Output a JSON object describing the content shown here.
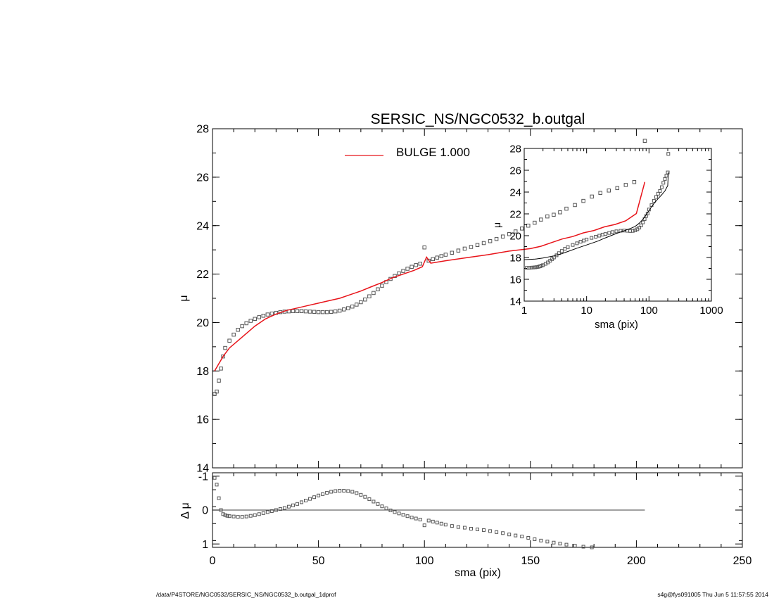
{
  "footer": {
    "left": "/data/P4STORE/NGC0532/SERSIC_NS/NGC0532_b.outgal_1dprof",
    "right": "s4g@fys091005  Thu Jun  5 11:57:55 2014"
  },
  "colors": {
    "model": "#e8141a",
    "data": "#555555",
    "axis": "#000000"
  },
  "chart_data": [
    {
      "type": "scatter",
      "panel": "main",
      "title": "SERSIC_NS/NGC0532_b.outgal",
      "xlabel": "",
      "ylabel": "μ",
      "xlim": [
        0,
        250
      ],
      "ylim": [
        28,
        14
      ],
      "y_inverted": true,
      "xticks": [
        0,
        50,
        100,
        150,
        200,
        250
      ],
      "yticks": [
        14,
        16,
        18,
        20,
        22,
        24,
        26,
        28
      ],
      "legend": {
        "label": "BULGE  1.000",
        "placement": "top-center"
      },
      "series": [
        {
          "name": "",
          "style": "squares",
          "x": [
            1,
            2,
            3,
            4,
            5,
            6,
            8,
            10,
            12,
            14,
            16,
            18,
            20,
            22,
            24,
            26,
            28,
            30,
            32,
            34,
            36,
            38,
            40,
            42,
            44,
            46,
            48,
            50,
            52,
            54,
            56,
            58,
            60,
            62,
            64,
            66,
            68,
            70,
            72,
            74,
            76,
            78,
            80,
            82,
            84,
            86,
            88,
            90,
            92,
            94,
            96,
            98,
            100,
            102,
            104,
            106,
            108,
            110,
            113,
            116,
            119,
            122,
            125,
            128,
            131,
            134,
            137,
            140,
            143,
            146,
            149,
            152,
            155,
            158,
            161,
            164,
            167,
            171,
            175,
            179,
            183,
            187,
            191,
            195,
            199,
            204
          ],
          "y": [
            17.05,
            17.15,
            17.6,
            18.1,
            18.6,
            18.95,
            19.25,
            19.5,
            19.7,
            19.85,
            19.97,
            20.07,
            20.15,
            20.22,
            20.28,
            20.33,
            20.37,
            20.4,
            20.43,
            20.45,
            20.46,
            20.47,
            20.47,
            20.47,
            20.46,
            20.45,
            20.44,
            20.43,
            20.43,
            20.43,
            20.44,
            20.46,
            20.49,
            20.54,
            20.59,
            20.66,
            20.74,
            20.84,
            20.95,
            21.08,
            21.22,
            21.37,
            21.52,
            21.67,
            21.8,
            21.92,
            22.03,
            22.13,
            22.22,
            22.3,
            22.37,
            22.43,
            23.1,
            22.55,
            22.62,
            22.68,
            22.74,
            22.8,
            22.88,
            22.97,
            23.05,
            23.12,
            23.2,
            23.28,
            23.36,
            23.45,
            23.55,
            23.65,
            23.76,
            23.88,
            24.0,
            24.12,
            24.25,
            24.38,
            24.45,
            24.55,
            24.7,
            24.85,
            25.02,
            25.2,
            25.35,
            25.45,
            25.55,
            25.68,
            25.8,
            27.5
          ]
        },
        {
          "name": "BULGE  1.000",
          "style": "line",
          "x": [
            1,
            3,
            5,
            8,
            12,
            16,
            20,
            25,
            30,
            35,
            40,
            45,
            50,
            55,
            60,
            65,
            70,
            75,
            80,
            85,
            90,
            95,
            99,
            101,
            103,
            110,
            120,
            130,
            140,
            150,
            155,
            160,
            165,
            170,
            175,
            180,
            185,
            190,
            195,
            200,
            204
          ],
          "y": [
            18.0,
            18.3,
            18.6,
            18.95,
            19.25,
            19.55,
            19.85,
            20.15,
            20.35,
            20.5,
            20.6,
            20.7,
            20.8,
            20.9,
            21.0,
            21.15,
            21.3,
            21.48,
            21.65,
            21.85,
            22.0,
            22.15,
            22.3,
            22.7,
            22.45,
            22.55,
            22.68,
            22.8,
            22.95,
            23.05,
            23.15,
            23.3,
            23.45,
            23.55,
            23.7,
            23.8,
            23.95,
            24.05,
            24.2,
            24.5,
            25.8
          ]
        }
      ]
    },
    {
      "type": "scatter",
      "panel": "residual",
      "xlabel": "sma (pix)",
      "ylabel": "Δ μ",
      "xlim": [
        0,
        250
      ],
      "ylim": [
        -1.1,
        1.1
      ],
      "xticks": [
        0,
        50,
        100,
        150,
        200,
        250
      ],
      "yticks": [
        -1,
        0,
        1
      ],
      "zero_line": {
        "x_end": 204
      },
      "series": [
        {
          "name": "",
          "style": "squares",
          "x": [
            1,
            2,
            3,
            4,
            5,
            6,
            7,
            8,
            10,
            12,
            14,
            16,
            18,
            20,
            22,
            24,
            26,
            28,
            30,
            32,
            34,
            36,
            38,
            40,
            42,
            44,
            46,
            48,
            50,
            52,
            54,
            56,
            58,
            60,
            62,
            64,
            66,
            68,
            70,
            72,
            74,
            76,
            78,
            80,
            82,
            84,
            86,
            88,
            90,
            92,
            94,
            96,
            98,
            100,
            102,
            104,
            106,
            108,
            110,
            113,
            116,
            119,
            122,
            125,
            128,
            131,
            134,
            137,
            140,
            143,
            146,
            149,
            152,
            155,
            158,
            161,
            164,
            167,
            171,
            175,
            179
          ],
          "y": [
            -0.95,
            -0.75,
            -0.35,
            0.0,
            0.12,
            0.15,
            0.17,
            0.18,
            0.19,
            0.2,
            0.2,
            0.19,
            0.17,
            0.15,
            0.12,
            0.09,
            0.06,
            0.03,
            0.0,
            -0.03,
            -0.06,
            -0.1,
            -0.14,
            -0.18,
            -0.23,
            -0.28,
            -0.33,
            -0.38,
            -0.43,
            -0.47,
            -0.51,
            -0.54,
            -0.56,
            -0.57,
            -0.57,
            -0.56,
            -0.54,
            -0.5,
            -0.45,
            -0.39,
            -0.32,
            -0.25,
            -0.18,
            -0.11,
            -0.05,
            0.01,
            0.06,
            0.1,
            0.14,
            0.18,
            0.22,
            0.25,
            0.28,
            0.45,
            0.31,
            0.34,
            0.37,
            0.4,
            0.43,
            0.47,
            0.5,
            0.52,
            0.55,
            0.57,
            0.59,
            0.62,
            0.65,
            0.68,
            0.72,
            0.75,
            0.78,
            0.82,
            0.86,
            0.9,
            0.93,
            0.96,
            0.99,
            1.02,
            1.05,
            1.08,
            1.1
          ]
        }
      ]
    },
    {
      "type": "scatter",
      "panel": "inset",
      "xlabel": "sma (pix)",
      "ylabel": "μ",
      "xscale": "log",
      "xlim": [
        1,
        1000
      ],
      "ylim": [
        28,
        14
      ],
      "y_inverted": true,
      "xticks": [
        1,
        10,
        100,
        1000
      ],
      "xtick_labels": [
        "1",
        "10",
        "100",
        "1000"
      ],
      "yticks": [
        14,
        16,
        18,
        20,
        22,
        24,
        26,
        28
      ],
      "series": [
        {
          "name": "",
          "style": "squares",
          "x": [
            1.1,
            1.2,
            1.3,
            1.4,
            1.5,
            1.6,
            1.7,
            1.8,
            1.9,
            2.0,
            2.2,
            2.4,
            2.6,
            2.8,
            3.0,
            3.3,
            3.6,
            4.0,
            4.5,
            5,
            6,
            7,
            8,
            9,
            10,
            12,
            14,
            16,
            18,
            20,
            23,
            26,
            30,
            35,
            40,
            45,
            50,
            55,
            60,
            65,
            70,
            75,
            80,
            85,
            90,
            95,
            100,
            110,
            120,
            130,
            140,
            150,
            160,
            170,
            180,
            190,
            200,
            204
          ],
          "y": [
            17.05,
            17.05,
            17.07,
            17.08,
            17.1,
            17.12,
            17.15,
            17.2,
            17.25,
            17.3,
            17.42,
            17.55,
            17.7,
            17.85,
            18.0,
            18.2,
            18.4,
            18.6,
            18.8,
            18.95,
            19.15,
            19.3,
            19.45,
            19.55,
            19.65,
            19.8,
            19.9,
            20.0,
            20.1,
            20.15,
            20.25,
            20.33,
            20.4,
            20.45,
            20.47,
            20.45,
            20.43,
            20.44,
            20.49,
            20.59,
            20.74,
            20.95,
            21.22,
            21.52,
            21.8,
            22.03,
            22.4,
            22.8,
            23.2,
            23.55,
            23.85,
            24.1,
            24.45,
            24.85,
            25.2,
            25.5,
            25.8,
            27.5
          ]
        },
        {
          "name": "BULGE  1.000",
          "style": "line",
          "x": [
            1,
            1.5,
            2,
            3,
            4,
            5,
            7,
            10,
            15,
            20,
            30,
            40,
            50,
            60,
            70,
            80,
            90,
            100,
            110,
            120,
            140,
            160,
            180,
            200,
            204
          ],
          "y": [
            17.8,
            17.85,
            17.95,
            18.15,
            18.35,
            18.55,
            18.85,
            19.15,
            19.5,
            19.8,
            20.2,
            20.45,
            20.65,
            20.85,
            21.15,
            21.5,
            21.9,
            22.3,
            22.65,
            22.95,
            23.4,
            23.75,
            24.1,
            24.6,
            25.8
          ]
        }
      ]
    }
  ]
}
